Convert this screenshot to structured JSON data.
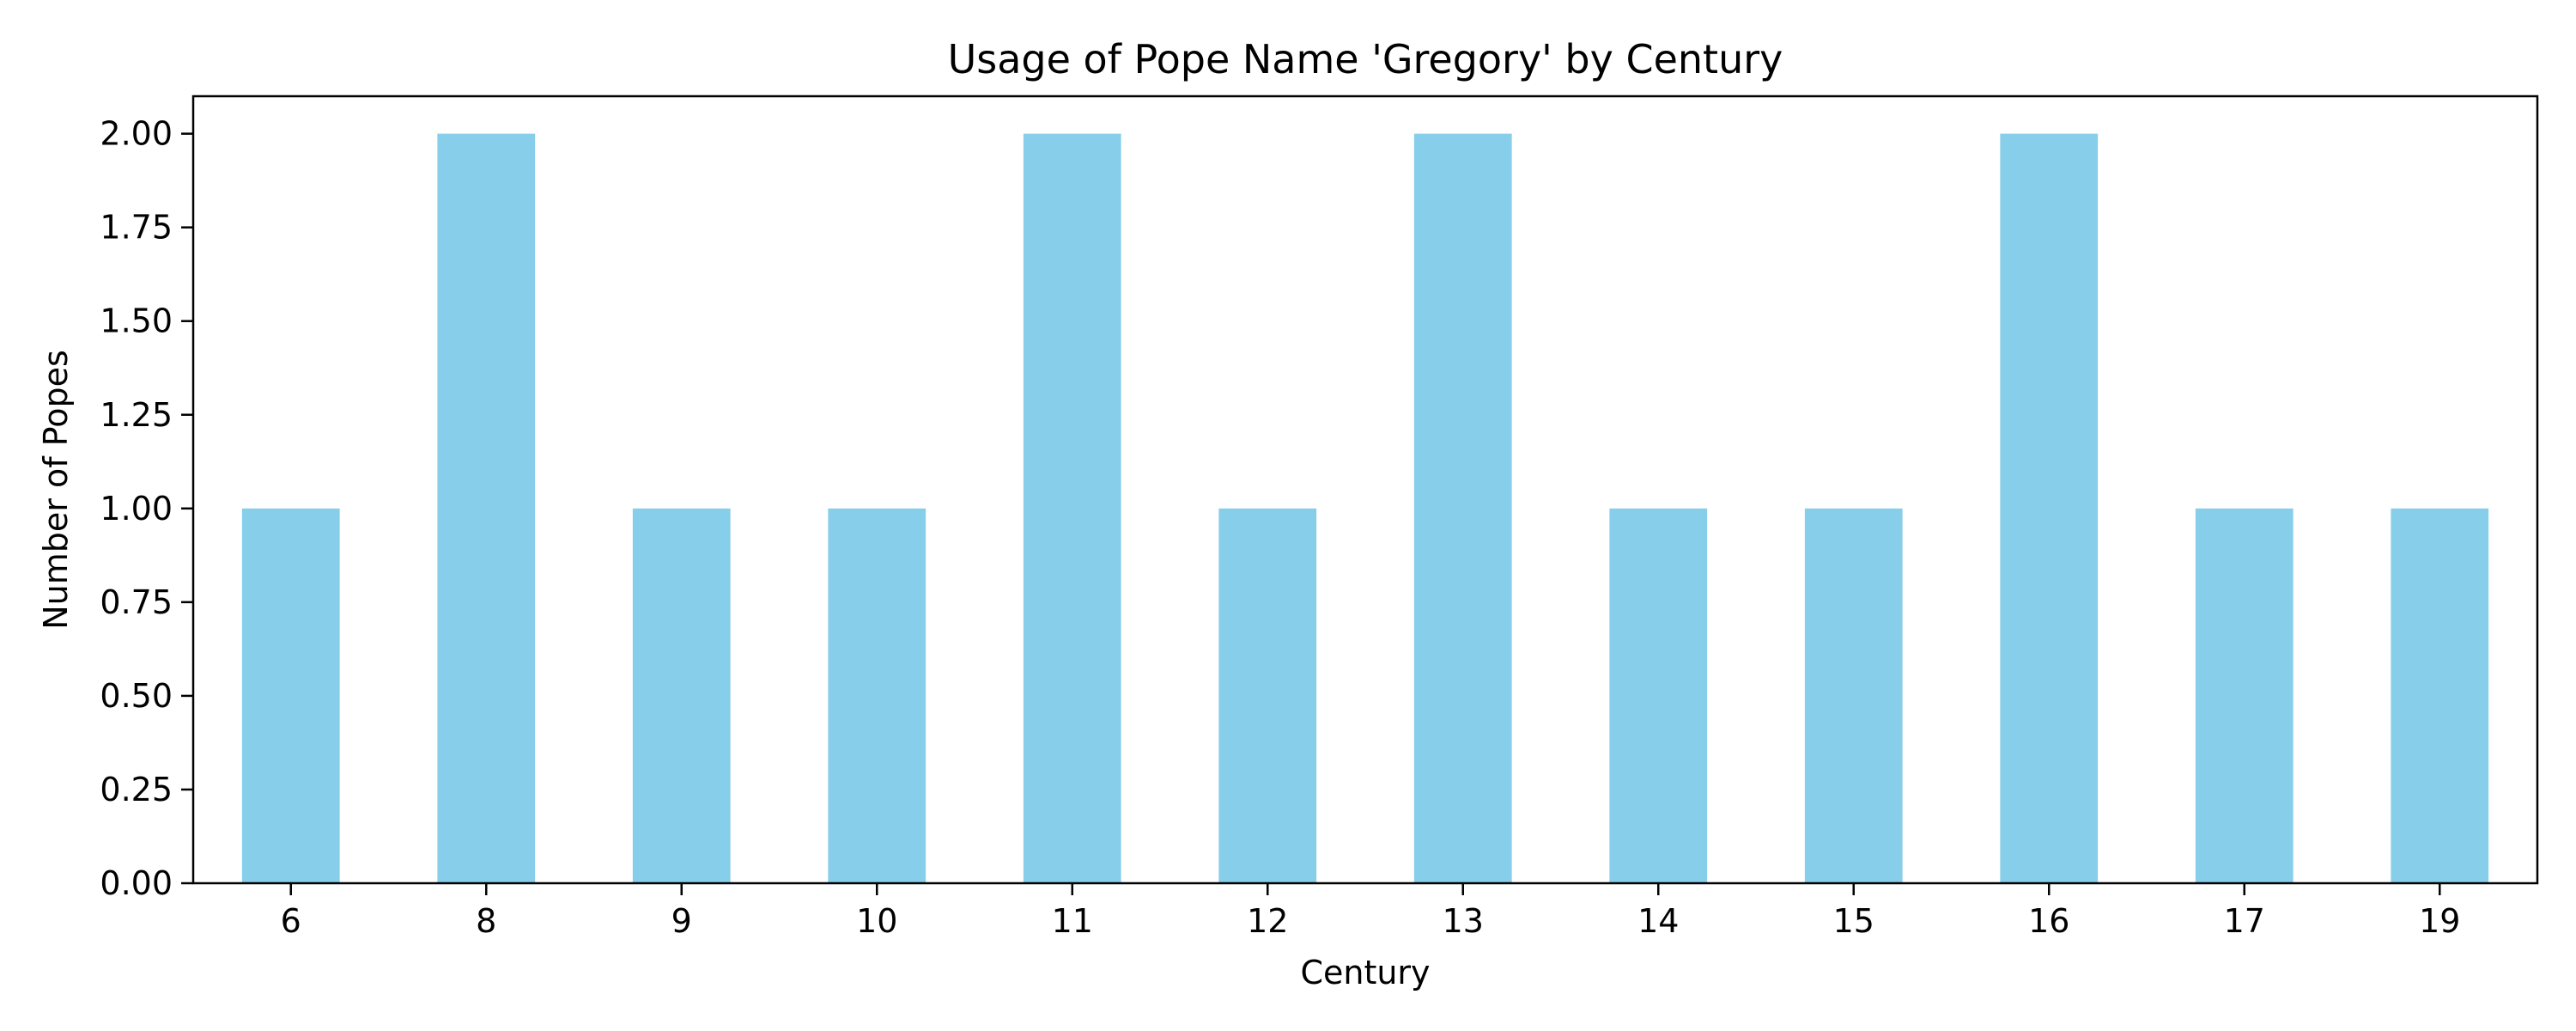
{
  "chart_data": {
    "type": "bar",
    "title": "Usage of Pope Name 'Gregory' by Century",
    "xlabel": "Century",
    "ylabel": "Number of Popes",
    "categories": [
      "6",
      "8",
      "9",
      "10",
      "11",
      "12",
      "13",
      "14",
      "15",
      "16",
      "17",
      "19"
    ],
    "values": [
      1,
      2,
      1,
      1,
      2,
      1,
      2,
      1,
      1,
      2,
      1,
      1
    ],
    "ylim": [
      0,
      2.1
    ],
    "yticks": [
      "0.00",
      "0.25",
      "0.50",
      "0.75",
      "1.00",
      "1.25",
      "1.50",
      "1.75",
      "2.00"
    ],
    "grid": false,
    "legend": "none",
    "bar_color": "#87ceeb"
  }
}
